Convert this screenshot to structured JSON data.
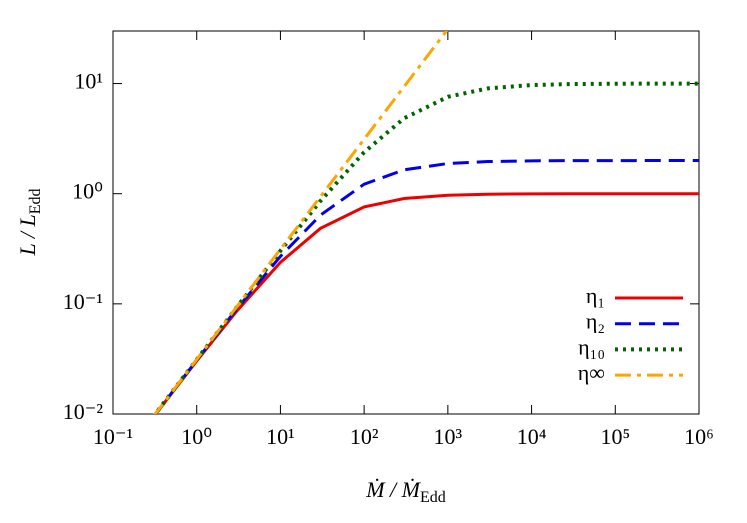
{
  "chart_data": {
    "type": "line",
    "x_label": [
      "Ṁ / Ṁ",
      "Edd"
    ],
    "y_label": [
      "L / L",
      "Edd"
    ],
    "x": [
      0.3,
      1,
      3,
      10,
      30,
      100,
      300,
      1000,
      3000,
      10000,
      30000,
      100000,
      1000000
    ],
    "series": [
      {
        "name": "η₁",
        "color": "#ee0000",
        "line_style": "solid",
        "values": [
          0.00929,
          0.0303,
          0.0857,
          0.238,
          0.484,
          0.758,
          0.904,
          0.969,
          0.989,
          0.997,
          0.999,
          1.0,
          1.0
        ]
      },
      {
        "name": "η₂",
        "color": "#0000ee",
        "line_style": "dashed",
        "values": [
          0.00933,
          0.0308,
          0.0896,
          0.27,
          0.638,
          1.22,
          1.648,
          1.88,
          1.958,
          1.987,
          1.996,
          1.999,
          2.0
        ]
      },
      {
        "name": "η₁₀",
        "color": "#006400",
        "line_style": "dotted",
        "values": [
          0.00937,
          0.0312,
          0.0929,
          0.303,
          0.857,
          2.381,
          4.839,
          7.576,
          9.036,
          9.69,
          9.894,
          9.968,
          9.997
        ]
      },
      {
        "name": "η∞",
        "color": "#ffa500",
        "line_style": "dashdot",
        "values": [
          0.00938,
          0.0313,
          0.0938,
          0.313,
          0.938,
          3.125,
          9.375,
          31.25,
          null,
          null,
          null,
          null,
          null
        ]
      }
    ],
    "xscale": "log",
    "yscale": "log",
    "xlim": [
      0.1,
      1000000
    ],
    "ylim": [
      0.01,
      30
    ],
    "xticks": [
      {
        "value": 0.1,
        "label": "10⁻¹"
      },
      {
        "value": 1,
        "label": "10⁰"
      },
      {
        "value": 10,
        "label": "10¹"
      },
      {
        "value": 100,
        "label": "10²"
      },
      {
        "value": 1000,
        "label": "10³"
      },
      {
        "value": 10000,
        "label": "10⁴"
      },
      {
        "value": 100000,
        "label": "10⁵"
      },
      {
        "value": 1000000,
        "label": "10⁶"
      }
    ],
    "yticks": [
      {
        "value": 0.01,
        "label": "10⁻²"
      },
      {
        "value": 0.1,
        "label": "10⁻¹"
      },
      {
        "value": 1,
        "label": "10⁰"
      },
      {
        "value": 10,
        "label": "10¹"
      }
    ],
    "legend": "lower right"
  }
}
